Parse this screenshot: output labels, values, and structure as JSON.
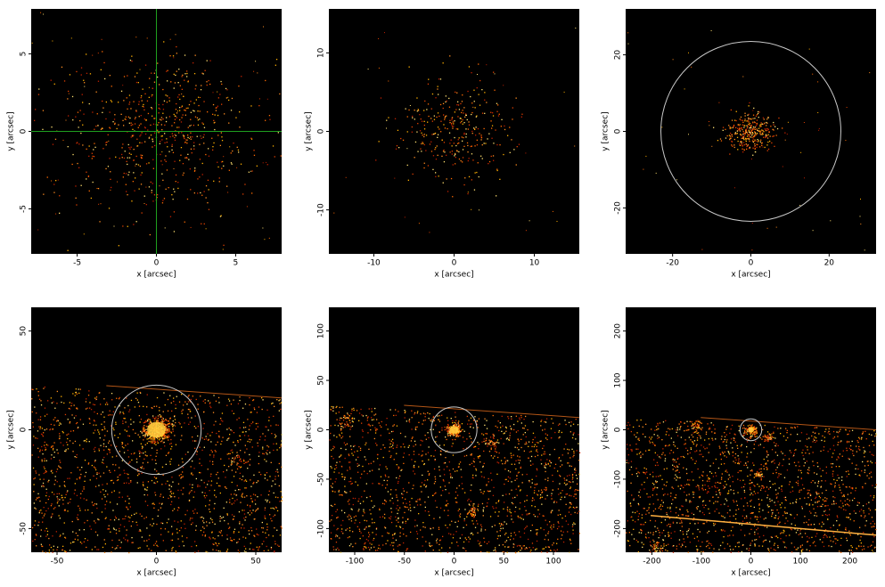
{
  "chart_data": [
    {
      "type": "image",
      "xlabel": "x [arcsec]",
      "ylabel": "y [arcsec]",
      "xlim": [
        -7.9,
        7.9
      ],
      "ylim": [
        -7.9,
        7.9
      ],
      "xticks": [
        -5,
        0,
        5
      ],
      "yticks": [
        -5,
        0,
        5
      ],
      "crosshair": {
        "x": 0,
        "y": 0,
        "color": "#1fa01f"
      }
    },
    {
      "type": "image",
      "xlabel": "x [arcsec]",
      "ylabel": "y [arcsec]",
      "xlim": [
        -15.6,
        15.6
      ],
      "ylim": [
        -15.6,
        15.6
      ],
      "xticks": [
        -10,
        0,
        10
      ],
      "yticks": [
        -10,
        0,
        10
      ]
    },
    {
      "type": "image",
      "xlabel": "x [arcsec]",
      "ylabel": "y [arcsec]",
      "xlim": [
        -32,
        32
      ],
      "ylim": [
        -32,
        32
      ],
      "xticks": [
        -20,
        0,
        20
      ],
      "yticks": [
        -20,
        0,
        20
      ],
      "region": {
        "x": 0,
        "y": 0,
        "radius": 23,
        "color": "#c8c8c8"
      }
    },
    {
      "type": "image",
      "xlabel": "x [arcsec]",
      "ylabel": "y [arcsec]",
      "xlim": [
        -63,
        63
      ],
      "ylim": [
        -62,
        62
      ],
      "xticks": [
        -50,
        0,
        50
      ],
      "yticks": [
        -50,
        0,
        50
      ],
      "region": {
        "x": 0,
        "y": 0,
        "radius": 22.5,
        "color": "#c8c8c8"
      }
    },
    {
      "type": "image",
      "xlabel": "x [arcsec]",
      "ylabel": "y [arcsec]",
      "xlim": [
        -126,
        126
      ],
      "ylim": [
        -124,
        124
      ],
      "xticks": [
        -100,
        -50,
        0,
        50,
        100
      ],
      "yticks": [
        -100,
        -50,
        0,
        50,
        100
      ],
      "region": {
        "x": 0,
        "y": 0,
        "radius": 23,
        "color": "#c8c8c8"
      }
    },
    {
      "type": "image",
      "xlabel": "x [arcsec]",
      "ylabel": "y [arcsec]",
      "xlim": [
        -253,
        253
      ],
      "ylim": [
        -248,
        248
      ],
      "xticks": [
        -200,
        -100,
        0,
        100,
        200
      ],
      "yticks": [
        -200,
        -100,
        0,
        100,
        200
      ],
      "region": {
        "x": 0,
        "y": 0,
        "radius": 22,
        "color": "#c8c8c8"
      }
    }
  ]
}
